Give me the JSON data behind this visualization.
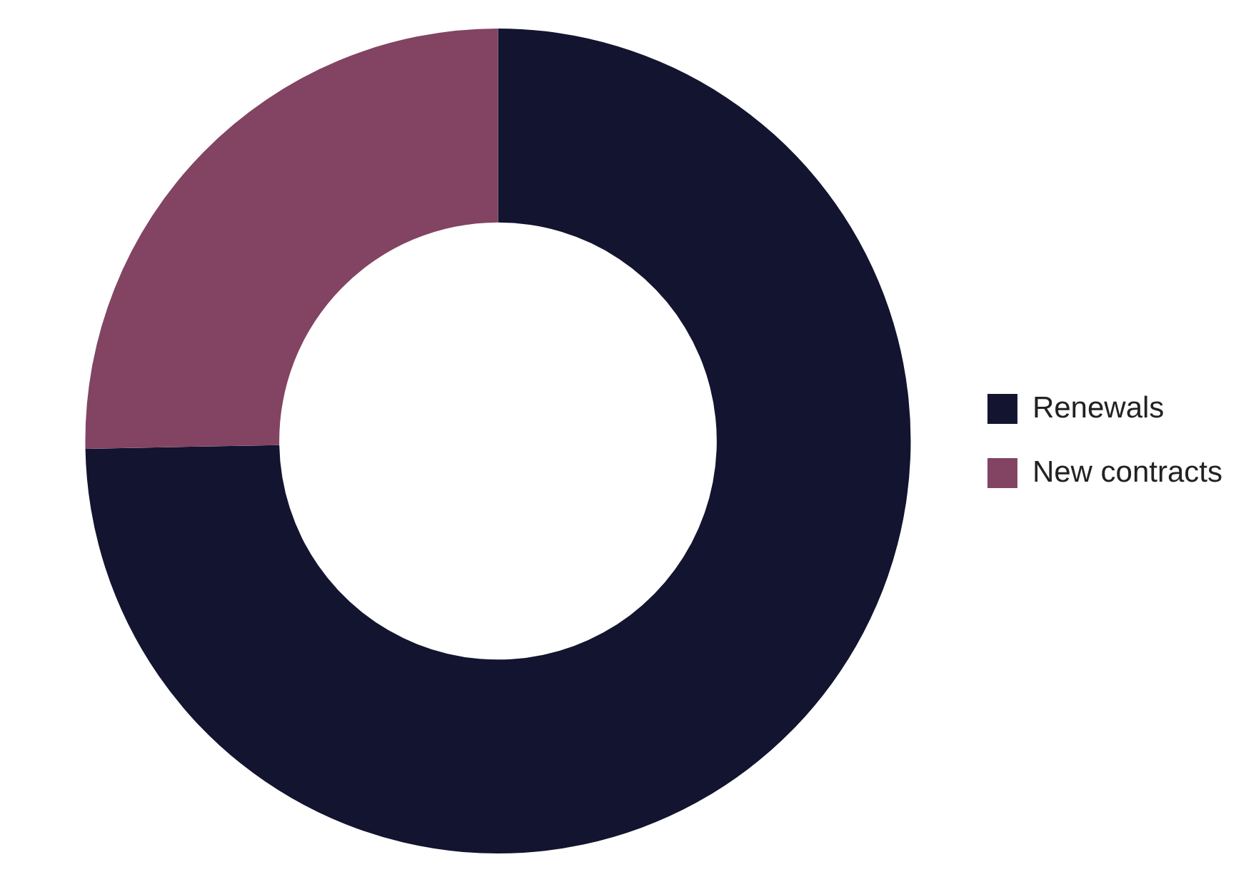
{
  "chart_data": {
    "type": "donut",
    "categories": [
      "Renewals",
      "New contracts"
    ],
    "values": [
      74.7,
      25.3
    ],
    "colors": [
      "#121430",
      "#824462"
    ],
    "legend": "right"
  }
}
